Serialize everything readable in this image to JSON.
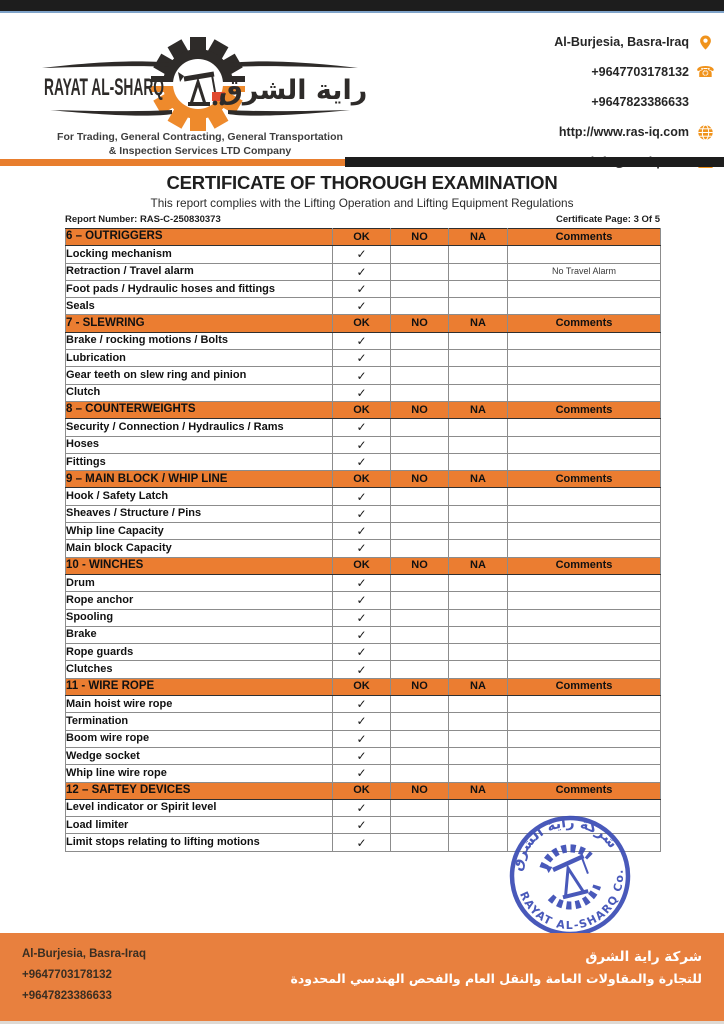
{
  "header": {
    "brand": {
      "name_en": "RAYAT AL-SHARQ",
      "name_ar": "راية الشرق",
      "tagline_line1": "For Trading, General Contracting, General Transportation",
      "tagline_line2": "& Inspection Services LTD Company"
    },
    "contact": {
      "address": "Al-Burjesia, Basra-Iraq",
      "phone1": "+9647703178132",
      "phone2": "+9647823386633",
      "website": "http://www.ras-iq.com",
      "email": "info@ras-iq.com"
    }
  },
  "certificate": {
    "title": "CERTIFICATE OF THOROUGH EXAMINATION",
    "subtitle": "This report complies with the Lifting Operation and Lifting Equipment Regulations",
    "report_number": "Report Number: RAS-C-250830373",
    "page_info": "Certificate Page: 3 Of 5"
  },
  "checklist": {
    "columns": [
      "OK",
      "NO",
      "NA",
      "Comments"
    ],
    "check_glyph": "✓",
    "sections": [
      {
        "title": "6 – OUTRIGGERS",
        "rows": [
          {
            "label": "Locking mechanism",
            "ok": true,
            "no": false,
            "na": false,
            "comment": ""
          },
          {
            "label": "Retraction / Travel alarm",
            "ok": true,
            "no": false,
            "na": false,
            "comment": "No Travel Alarm"
          },
          {
            "label": "Foot pads / Hydraulic hoses and fittings",
            "ok": true,
            "no": false,
            "na": false,
            "comment": ""
          },
          {
            "label": "Seals",
            "ok": true,
            "no": false,
            "na": false,
            "comment": ""
          }
        ]
      },
      {
        "title": "7 - SLEWRING",
        "rows": [
          {
            "label": "Brake / rocking motions / Bolts",
            "ok": true,
            "no": false,
            "na": false,
            "comment": ""
          },
          {
            "label": "Lubrication",
            "ok": true,
            "no": false,
            "na": false,
            "comment": ""
          },
          {
            "label": "Gear teeth on slew ring and pinion",
            "ok": true,
            "no": false,
            "na": false,
            "comment": ""
          },
          {
            "label": "Clutch",
            "ok": true,
            "no": false,
            "na": false,
            "comment": ""
          }
        ]
      },
      {
        "title": "8 – COUNTERWEIGHTS",
        "rows": [
          {
            "label": "Security / Connection / Hydraulics / Rams",
            "ok": true,
            "no": false,
            "na": false,
            "comment": ""
          },
          {
            "label": "Hoses",
            "ok": true,
            "no": false,
            "na": false,
            "comment": ""
          },
          {
            "label": "Fittings",
            "ok": true,
            "no": false,
            "na": false,
            "comment": ""
          }
        ]
      },
      {
        "title": "9 – MAIN BLOCK / WHIP LINE",
        "rows": [
          {
            "label": "Hook / Safety Latch",
            "ok": true,
            "no": false,
            "na": false,
            "comment": ""
          },
          {
            "label": "Sheaves / Structure / Pins",
            "ok": true,
            "no": false,
            "na": false,
            "comment": ""
          },
          {
            "label": "Whip line Capacity",
            "ok": true,
            "no": false,
            "na": false,
            "comment": ""
          },
          {
            "label": "Main block Capacity",
            "ok": true,
            "no": false,
            "na": false,
            "comment": ""
          }
        ]
      },
      {
        "title": "10 - WINCHES",
        "rows": [
          {
            "label": "Drum",
            "ok": true,
            "no": false,
            "na": false,
            "comment": ""
          },
          {
            "label": "Rope anchor",
            "ok": true,
            "no": false,
            "na": false,
            "comment": ""
          },
          {
            "label": "Spooling",
            "ok": true,
            "no": false,
            "na": false,
            "comment": ""
          },
          {
            "label": "Brake",
            "ok": true,
            "no": false,
            "na": false,
            "comment": ""
          },
          {
            "label": "Rope guards",
            "ok": true,
            "no": false,
            "na": false,
            "comment": ""
          },
          {
            "label": "Clutches",
            "ok": true,
            "no": false,
            "na": false,
            "comment": ""
          }
        ]
      },
      {
        "title": "11 - WIRE ROPE",
        "rows": [
          {
            "label": "Main hoist wire rope",
            "ok": true,
            "no": false,
            "na": false,
            "comment": ""
          },
          {
            "label": "Termination",
            "ok": true,
            "no": false,
            "na": false,
            "comment": ""
          },
          {
            "label": "Boom wire rope",
            "ok": true,
            "no": false,
            "na": false,
            "comment": ""
          },
          {
            "label": "Wedge socket",
            "ok": true,
            "no": false,
            "na": false,
            "comment": ""
          },
          {
            "label": "Whip line wire rope",
            "ok": true,
            "no": false,
            "na": false,
            "comment": ""
          }
        ]
      },
      {
        "title": "12 – SAFTEY DEVICES",
        "rows": [
          {
            "label": "Level indicator or Spirit level",
            "ok": true,
            "no": false,
            "na": false,
            "comment": ""
          },
          {
            "label": "Load limiter",
            "ok": true,
            "no": false,
            "na": false,
            "comment": ""
          },
          {
            "label": "Limit stops relating to lifting motions",
            "ok": true,
            "no": false,
            "na": false,
            "comment": ""
          }
        ]
      }
    ]
  },
  "stamp": {
    "arabic_text": "شركة راية الشرق",
    "english_text": "RAYAT AL-SHARQ Co."
  },
  "footer": {
    "address": "Al-Burjesia, Basra-Iraq",
    "phone1": "+9647703178132",
    "phone2": "+9647823386633",
    "company_ar": "شركة راية الشرق",
    "services_ar": "للتجارة والمقاولات العامة والنقل العام والفحص الهندسي المحدودة"
  },
  "colors": {
    "accent_orange": "#eb7d31",
    "footer_orange": "#e8803e",
    "icon_orange": "#f0931c",
    "stamp_blue": "#3a4bb5",
    "topbar_black": "#1d1d1d"
  }
}
